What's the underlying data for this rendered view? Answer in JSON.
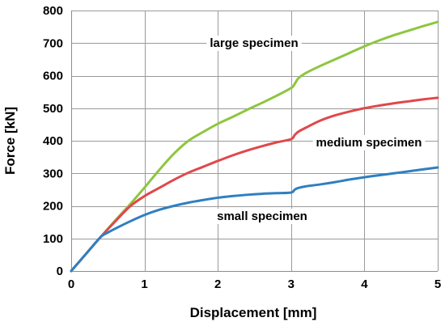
{
  "chart_data": {
    "type": "line",
    "title": "",
    "xlabel": "Displacement [mm]",
    "ylabel": "Force [kN]",
    "xlim": [
      0,
      5
    ],
    "ylim": [
      0,
      800
    ],
    "xticks": [
      0,
      1,
      2,
      3,
      4,
      5
    ],
    "yticks": [
      0,
      100,
      200,
      300,
      400,
      500,
      600,
      700,
      800
    ],
    "xtick_labels": [
      "0",
      "1",
      "2",
      "3",
      "4",
      "5"
    ],
    "ytick_labels": [
      "0",
      "100",
      "200",
      "300",
      "400",
      "500",
      "600",
      "700",
      "800"
    ],
    "grid": true,
    "legend": "inline labels",
    "series": [
      {
        "name": "large specimen",
        "color": "#8DC63F",
        "x": [
          0,
          0.2,
          0.4,
          0.6,
          0.8,
          1.0,
          1.2,
          1.4,
          1.6,
          1.8,
          2.0,
          2.2,
          2.4,
          2.6,
          2.8,
          3.0,
          3.05,
          3.1,
          3.2,
          3.4,
          3.6,
          3.8,
          4.0,
          4.2,
          4.4,
          4.6,
          4.8,
          5.0
        ],
        "y": [
          0,
          52,
          104,
          155,
          204,
          256,
          310,
          360,
          400,
          427,
          452,
          473,
          495,
          516,
          538,
          562,
          575,
          592,
          608,
          630,
          650,
          670,
          690,
          708,
          724,
          738,
          752,
          765
        ]
      },
      {
        "name": "medium specimen",
        "color": "#E0484B",
        "x": [
          0,
          0.2,
          0.4,
          0.6,
          0.8,
          1.0,
          1.2,
          1.4,
          1.6,
          1.8,
          2.0,
          2.2,
          2.4,
          2.6,
          2.8,
          3.0,
          3.05,
          3.1,
          3.2,
          3.4,
          3.6,
          3.8,
          4.0,
          4.2,
          4.4,
          4.6,
          4.8,
          5.0
        ],
        "y": [
          0,
          52,
          104,
          152,
          198,
          230,
          255,
          280,
          302,
          320,
          338,
          355,
          370,
          383,
          395,
          405,
          418,
          428,
          440,
          462,
          478,
          490,
          500,
          508,
          515,
          521,
          527,
          532
        ]
      },
      {
        "name": "small specimen",
        "color": "#2F7FC1",
        "x": [
          0,
          0.2,
          0.4,
          0.5,
          0.6,
          0.8,
          1.0,
          1.2,
          1.4,
          1.6,
          1.8,
          2.0,
          2.2,
          2.4,
          2.6,
          2.8,
          3.0,
          3.05,
          3.1,
          3.2,
          3.4,
          3.6,
          3.8,
          4.0,
          4.2,
          4.4,
          4.6,
          4.8,
          5.0
        ],
        "y": [
          0,
          52,
          104,
          118,
          130,
          152,
          172,
          188,
          200,
          210,
          218,
          225,
          230,
          234,
          237,
          239,
          241,
          250,
          255,
          260,
          266,
          273,
          281,
          288,
          294,
          300,
          306,
          312,
          318
        ]
      }
    ]
  }
}
